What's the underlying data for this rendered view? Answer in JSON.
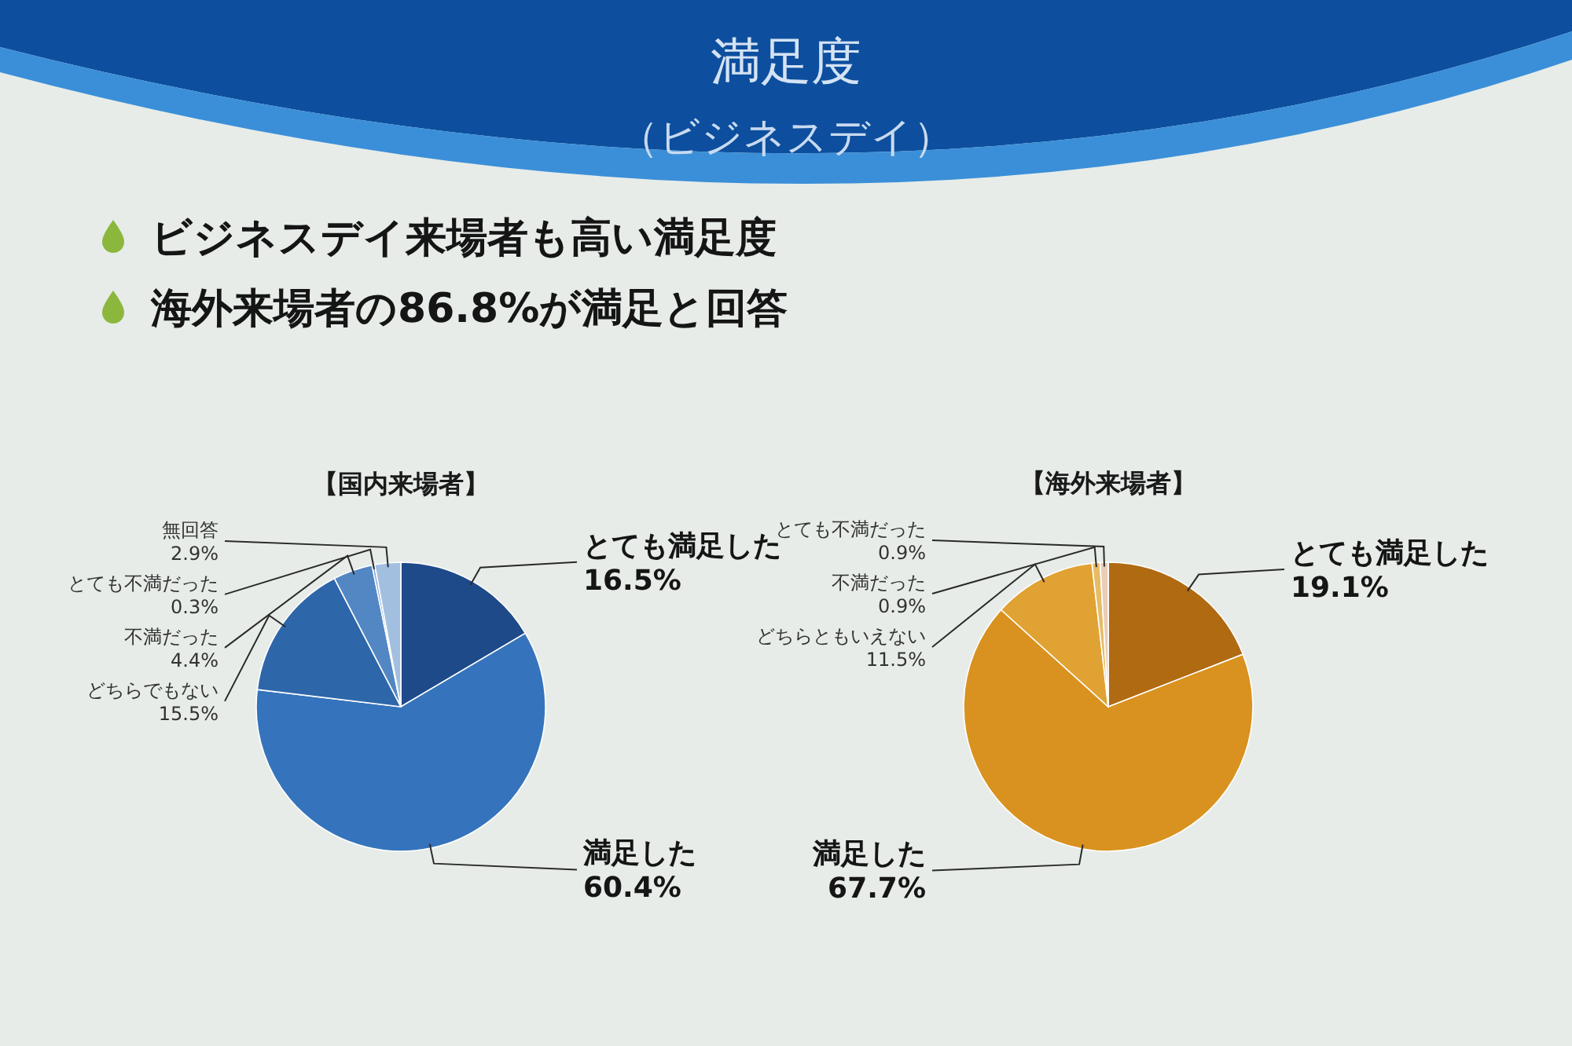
{
  "chart_data": [
    {
      "type": "other",
      "title": "満足度",
      "subtitle": "（ビジネスデイ）",
      "annotations": [
        "ビジネスデイ来場者も高い満足度",
        "海外来場者の86.8%が満足と回答"
      ]
    },
    {
      "type": "pie",
      "title": "【国内来場者】",
      "categories": [
        "とても満足した",
        "満足した",
        "どちらでもない",
        "不満だった",
        "とても不満だった",
        "無回答"
      ],
      "values": [
        16.5,
        60.4,
        15.5,
        4.4,
        0.3,
        2.9
      ],
      "value_labels": [
        "16.5%",
        "60.4%",
        "15.5%",
        "4.4%",
        "0.3%",
        "2.9%"
      ],
      "colors": [
        "#1f4a8a",
        "#3574bc",
        "#2e66aa",
        "#5287c4",
        "#7ea5d4",
        "#a3bfe0"
      ]
    },
    {
      "type": "pie",
      "title": "【海外来場者】",
      "categories": [
        "とても満足した",
        "満足した",
        "どちらともいえない",
        "不満だった",
        "とても不満だった"
      ],
      "values": [
        19.1,
        67.7,
        11.5,
        0.9,
        0.9
      ],
      "value_labels": [
        "19.1%",
        "67.7%",
        "11.5%",
        "0.9%",
        "0.9%"
      ],
      "colors": [
        "#b06a12",
        "#d9921f",
        "#e0a232",
        "#e6bc66",
        "#e8cdb8"
      ]
    }
  ]
}
